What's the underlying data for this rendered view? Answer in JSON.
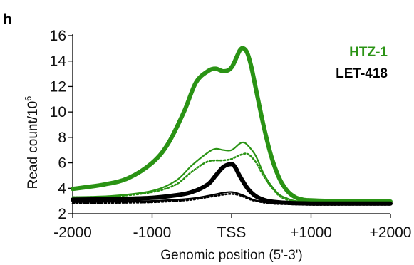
{
  "chart_data": {
    "type": "line",
    "panel_label": "h",
    "xlabel": "Genomic position (5'-3')",
    "ylabel_main": "Read count/10",
    "ylabel_superscript": "6",
    "xlim": [
      -2000,
      2000
    ],
    "ylim": [
      2,
      16
    ],
    "x_ticks": [
      {
        "value": -2000,
        "label": "-2000"
      },
      {
        "value": -1000,
        "label": "-1000"
      },
      {
        "value": 0,
        "label": "TSS"
      },
      {
        "value": 1000,
        "label": "+1000"
      },
      {
        "value": 2000,
        "label": "+2000"
      }
    ],
    "y_ticks": [
      2,
      4,
      6,
      8,
      10,
      12,
      14,
      16
    ],
    "grid": false,
    "legend_position": "top-right",
    "legend": [
      {
        "label": "HTZ-1",
        "color": "#2a9314"
      },
      {
        "label": "LET-418",
        "color": "#000000"
      }
    ],
    "series": [
      {
        "group": "HTZ-1",
        "style": "thick",
        "color": "#2a9314",
        "x": [
          -2000,
          -1600,
          -1300,
          -1000,
          -800,
          -600,
          -450,
          -300,
          -200,
          -100,
          0,
          100,
          150,
          200,
          250,
          300,
          400,
          500,
          600,
          700,
          800,
          900,
          1000,
          1200,
          1500,
          2000
        ],
        "y": [
          3.95,
          4.3,
          4.8,
          6.0,
          7.5,
          10.0,
          12.3,
          13.2,
          13.4,
          13.2,
          13.5,
          14.8,
          15.0,
          14.6,
          13.5,
          12.0,
          9.0,
          6.5,
          4.8,
          3.8,
          3.3,
          3.1,
          3.05,
          3.0,
          3.0,
          2.95
        ]
      },
      {
        "group": "HTZ-1",
        "style": "thin",
        "color": "#2a9314",
        "x": [
          -2000,
          -1500,
          -1000,
          -700,
          -500,
          -300,
          -200,
          -100,
          0,
          100,
          150,
          200,
          300,
          400,
          500,
          600,
          700,
          800,
          1000,
          1500,
          2000
        ],
        "y": [
          3.3,
          3.4,
          3.8,
          4.6,
          5.8,
          6.8,
          7.1,
          7.0,
          7.0,
          7.5,
          7.6,
          7.4,
          6.6,
          5.2,
          4.2,
          3.5,
          3.2,
          3.0,
          2.95,
          2.9,
          2.9
        ]
      },
      {
        "group": "HTZ-1",
        "style": "dotted",
        "color": "#2a9314",
        "x": [
          -2000,
          -1500,
          -1000,
          -700,
          -500,
          -300,
          -100,
          0,
          100,
          200,
          300,
          400,
          500,
          600,
          700,
          800,
          1000,
          1500,
          2000
        ],
        "y": [
          3.3,
          3.35,
          3.7,
          4.3,
          5.3,
          6.1,
          6.2,
          6.3,
          6.6,
          6.7,
          6.1,
          5.0,
          4.1,
          3.4,
          3.1,
          2.95,
          2.9,
          2.85,
          2.85
        ]
      },
      {
        "group": "LET-418",
        "style": "thick",
        "color": "#000000",
        "x": [
          -2000,
          -1500,
          -1000,
          -700,
          -500,
          -300,
          -200,
          -100,
          0,
          50,
          100,
          200,
          300,
          400,
          500,
          700,
          1000,
          1500,
          2000
        ],
        "y": [
          3.1,
          3.15,
          3.25,
          3.45,
          3.7,
          4.3,
          5.0,
          5.7,
          5.9,
          5.6,
          5.0,
          4.0,
          3.4,
          3.1,
          2.95,
          2.85,
          2.8,
          2.8,
          2.8
        ]
      },
      {
        "group": "LET-418",
        "style": "thin",
        "color": "#000000",
        "x": [
          -2000,
          -1500,
          -1000,
          -700,
          -500,
          -300,
          -100,
          0,
          100,
          200,
          300,
          500,
          700,
          1000,
          1500,
          2000
        ],
        "y": [
          2.9,
          2.95,
          3.0,
          3.1,
          3.2,
          3.4,
          3.65,
          3.7,
          3.55,
          3.3,
          3.05,
          2.85,
          2.8,
          2.75,
          2.75,
          2.75
        ]
      },
      {
        "group": "LET-418",
        "style": "dotted",
        "color": "#000000",
        "x": [
          -2000,
          -1500,
          -1000,
          -700,
          -500,
          -300,
          -100,
          0,
          100,
          200,
          300,
          500,
          700,
          1000,
          1500,
          2000
        ],
        "y": [
          2.8,
          2.85,
          2.9,
          3.0,
          3.1,
          3.3,
          3.5,
          3.55,
          3.45,
          3.2,
          3.0,
          2.8,
          2.75,
          2.7,
          2.7,
          2.7
        ]
      }
    ]
  }
}
